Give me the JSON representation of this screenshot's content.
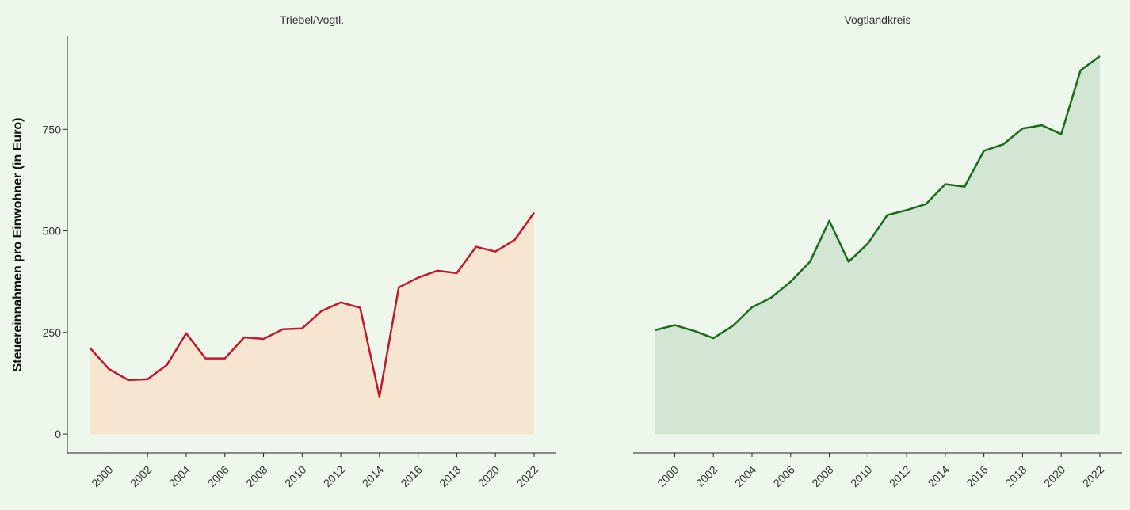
{
  "chart_data": [
    {
      "type": "area",
      "title": "Triebel/Vogtl.",
      "y_label": "Steuereinnahmen pro Einwohner (in Euro)",
      "x": [
        1999,
        2000,
        2001,
        2002,
        2003,
        2004,
        2005,
        2006,
        2007,
        2008,
        2009,
        2010,
        2011,
        2012,
        2013,
        2014,
        2015,
        2016,
        2017,
        2018,
        2019,
        2020,
        2021,
        2022
      ],
      "values": [
        213,
        160,
        133,
        135,
        170,
        248,
        186,
        186,
        238,
        234,
        258,
        260,
        303,
        324,
        311,
        92,
        361,
        385,
        402,
        396,
        461,
        449,
        478,
        545
      ],
      "color": "#c0182f",
      "fill": "#f6e5cf",
      "xlim": [
        1997.85,
        2023.15
      ],
      "xticks": [
        2000,
        2002,
        2004,
        2006,
        2008,
        2010,
        2012,
        2014,
        2016,
        2018,
        2020,
        2022
      ],
      "ylim": [
        -46.6,
        978.6
      ],
      "yticks": [
        0,
        250,
        500,
        750
      ]
    },
    {
      "type": "area",
      "title": "Vogtlandkreis",
      "x": [
        1999,
        2000,
        2001,
        2002,
        2003,
        2004,
        2005,
        2006,
        2007,
        2008,
        2009,
        2010,
        2011,
        2012,
        2013,
        2014,
        2015,
        2016,
        2017,
        2018,
        2019,
        2020,
        2021,
        2022
      ],
      "values": [
        256,
        268,
        254,
        236,
        266,
        312,
        336,
        375,
        424,
        525,
        424,
        469,
        539,
        551,
        566,
        615,
        609,
        697,
        713,
        752,
        760,
        738,
        895,
        930
      ],
      "color": "#1a6b1a",
      "fill": "#d3e6d3",
      "xlim": [
        1997.85,
        2023.15
      ],
      "xticks": [
        2000,
        2002,
        2004,
        2006,
        2008,
        2010,
        2012,
        2014,
        2016,
        2018,
        2020,
        2022
      ],
      "ylim": [
        -46.6,
        978.6
      ]
    }
  ]
}
